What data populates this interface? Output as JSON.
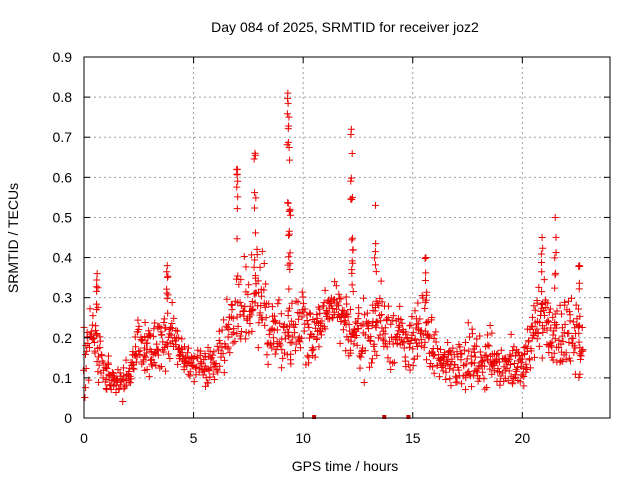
{
  "chart_data": {
    "type": "scatter",
    "title": "Day 084 of 2025, SRMTID for receiver joz2",
    "xlabel": "GPS time / hours",
    "ylabel": "SRMTID / TECUs",
    "xlim": [
      0,
      24
    ],
    "ylim": [
      0,
      0.9
    ],
    "xticks": [
      0,
      5,
      10,
      15,
      20
    ],
    "xtick_labels": [
      "0",
      "5",
      "10",
      "15",
      "20"
    ],
    "yticks": [
      0,
      0.1,
      0.2,
      0.3,
      0.4,
      0.5,
      0.6,
      0.7,
      0.8,
      0.9
    ],
    "ytick_labels": [
      "0",
      "0.1",
      "0.2",
      "0.3",
      "0.4",
      "0.5",
      "0.6",
      "0.7",
      "0.8",
      "0.9"
    ],
    "grid": true,
    "marker": "+",
    "color": "#ee0000",
    "time_step_hours": 0.05,
    "series": [
      {
        "name": "SRMTID",
        "x_start": 0.0,
        "x_end": 22.8,
        "profile": [
          [
            0.0,
            0.15,
            0.08
          ],
          [
            0.5,
            0.2,
            0.07
          ],
          [
            1.0,
            0.11,
            0.04
          ],
          [
            1.5,
            0.09,
            0.03
          ],
          [
            2.0,
            0.1,
            0.04
          ],
          [
            2.5,
            0.17,
            0.06
          ],
          [
            3.0,
            0.16,
            0.05
          ],
          [
            3.5,
            0.19,
            0.06
          ],
          [
            4.0,
            0.21,
            0.06
          ],
          [
            4.5,
            0.15,
            0.04
          ],
          [
            5.0,
            0.13,
            0.03
          ],
          [
            5.5,
            0.13,
            0.03
          ],
          [
            6.0,
            0.14,
            0.04
          ],
          [
            6.5,
            0.2,
            0.07
          ],
          [
            7.0,
            0.3,
            0.1
          ],
          [
            7.5,
            0.28,
            0.09
          ],
          [
            8.0,
            0.31,
            0.1
          ],
          [
            8.5,
            0.22,
            0.06
          ],
          [
            9.0,
            0.21,
            0.07
          ],
          [
            9.5,
            0.22,
            0.07
          ],
          [
            10.0,
            0.25,
            0.07
          ],
          [
            10.5,
            0.18,
            0.05
          ],
          [
            11.0,
            0.27,
            0.05
          ],
          [
            11.5,
            0.28,
            0.05
          ],
          [
            12.0,
            0.22,
            0.05
          ],
          [
            12.5,
            0.21,
            0.06
          ],
          [
            13.0,
            0.2,
            0.07
          ],
          [
            13.5,
            0.24,
            0.09
          ],
          [
            14.0,
            0.21,
            0.07
          ],
          [
            14.5,
            0.19,
            0.06
          ],
          [
            15.0,
            0.19,
            0.06
          ],
          [
            15.5,
            0.22,
            0.08
          ],
          [
            16.0,
            0.16,
            0.05
          ],
          [
            16.5,
            0.13,
            0.04
          ],
          [
            17.0,
            0.14,
            0.05
          ],
          [
            17.5,
            0.15,
            0.05
          ],
          [
            18.0,
            0.14,
            0.05
          ],
          [
            18.5,
            0.15,
            0.05
          ],
          [
            19.0,
            0.13,
            0.04
          ],
          [
            19.5,
            0.14,
            0.05
          ],
          [
            20.0,
            0.12,
            0.04
          ],
          [
            20.5,
            0.22,
            0.08
          ],
          [
            21.0,
            0.25,
            0.09
          ],
          [
            21.5,
            0.19,
            0.07
          ],
          [
            22.0,
            0.22,
            0.09
          ],
          [
            22.8,
            0.17,
            0.06
          ]
        ],
        "peaks": [
          {
            "x": 0.6,
            "y": 0.36
          },
          {
            "x": 3.8,
            "y": 0.38
          },
          {
            "x": 7.0,
            "y": 0.62
          },
          {
            "x": 7.8,
            "y": 0.66
          },
          {
            "x": 9.3,
            "y": 0.81
          },
          {
            "x": 9.35,
            "y": 0.75
          },
          {
            "x": 9.4,
            "y": 0.52
          },
          {
            "x": 12.2,
            "y": 0.72
          },
          {
            "x": 12.25,
            "y": 0.55
          },
          {
            "x": 13.3,
            "y": 0.53
          },
          {
            "x": 15.6,
            "y": 0.4
          },
          {
            "x": 20.9,
            "y": 0.45
          },
          {
            "x": 21.5,
            "y": 0.5
          },
          {
            "x": 22.6,
            "y": 0.38
          }
        ]
      }
    ],
    "baseline_markers": [
      10.5,
      13.7,
      14.8
    ]
  }
}
